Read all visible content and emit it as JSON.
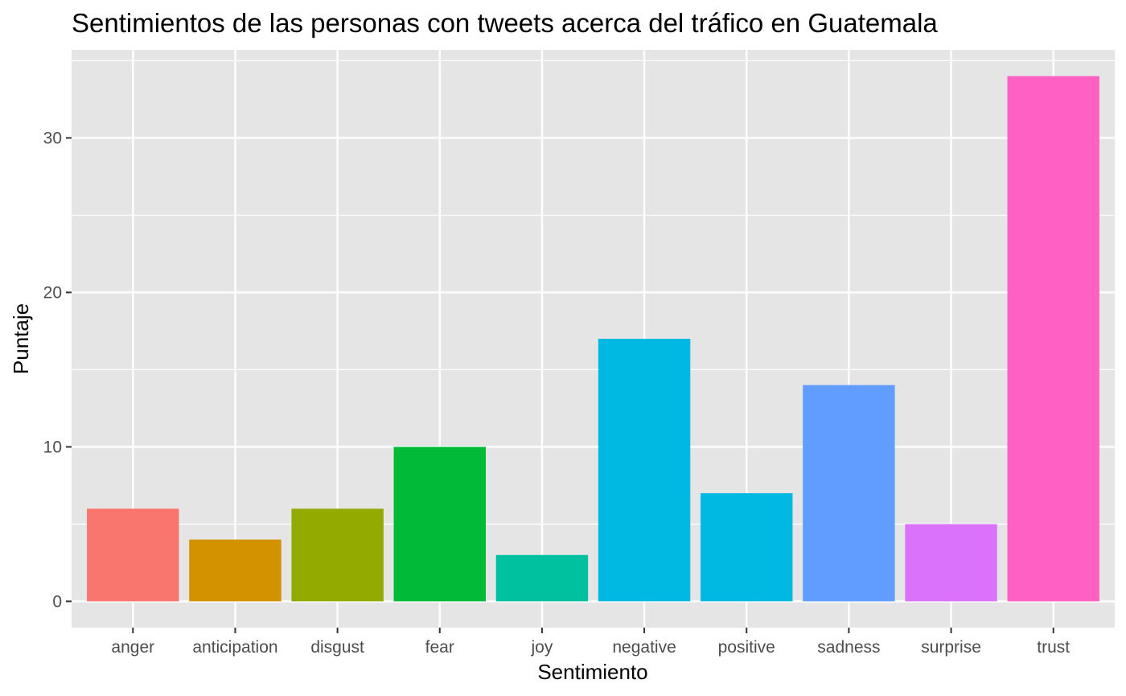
{
  "chart_data": {
    "type": "bar",
    "title": "Sentimientos de las personas con tweets acerca del tráfico en Guatemala",
    "xlabel": "Sentimiento",
    "ylabel": "Puntaje",
    "categories": [
      "anger",
      "anticipation",
      "disgust",
      "fear",
      "joy",
      "negative",
      "positive",
      "sadness",
      "surprise",
      "trust"
    ],
    "values": [
      6,
      4,
      6,
      10,
      3,
      17,
      7,
      14,
      5,
      34
    ],
    "colors": [
      "#F8766D",
      "#D39200",
      "#93AA00",
      "#00BA38",
      "#00C19F",
      "#00B9E3",
      "#00B9E3",
      "#619CFF",
      "#DB72FB",
      "#FF61C3"
    ],
    "yticks": [
      0,
      10,
      20,
      30
    ],
    "ylim": [
      -1.7,
      35.7
    ],
    "grid": true,
    "legend": "none",
    "panel_background": "#E5E5E5",
    "grid_color": "#FFFFFF"
  }
}
